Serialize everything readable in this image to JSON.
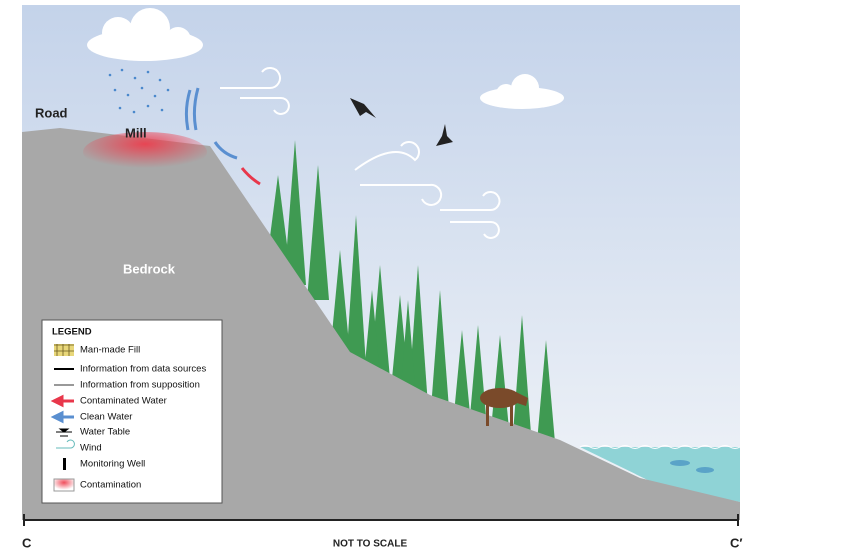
{
  "labels": {
    "road": "Road",
    "mill": "Mill",
    "bedrock": "Bedrock"
  },
  "legend": {
    "title": "LEGEND",
    "items": [
      "Man-made Fill",
      "Information from data sources",
      "Information from supposition",
      "Contaminated Water",
      "Clean Water",
      "Water Table",
      "Wind",
      "Monitoring Well",
      "Contamination"
    ]
  },
  "section": {
    "start": "C",
    "end": "C′",
    "scale_note": "NOT TO SCALE"
  }
}
